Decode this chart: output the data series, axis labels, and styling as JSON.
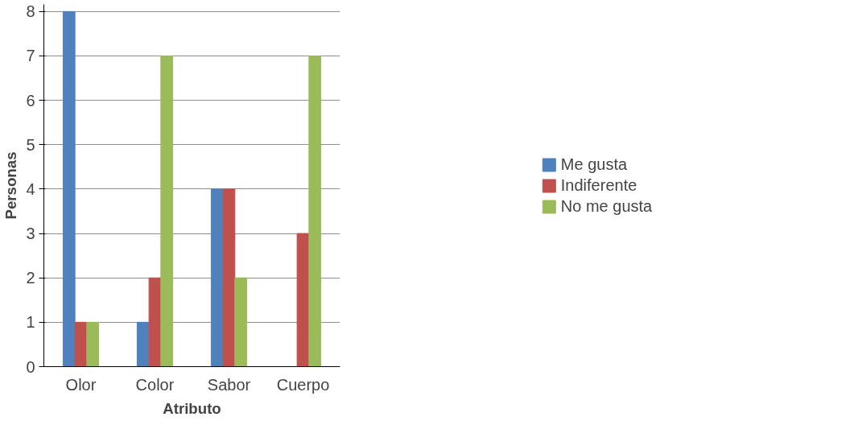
{
  "chart_data": {
    "type": "bar",
    "xlabel": "Atributo",
    "ylabel": "Personas",
    "categories": [
      "Olor",
      "Color",
      "Sabor",
      "Cuerpo"
    ],
    "series": [
      {
        "name": "Me gusta",
        "color": "#4f81bd",
        "values": [
          8,
          1,
          4,
          0
        ]
      },
      {
        "name": "Indiferente",
        "color": "#c0504d",
        "values": [
          1,
          2,
          4,
          3
        ]
      },
      {
        "name": "No me gusta",
        "color": "#9bbb59",
        "values": [
          1,
          7,
          2,
          7
        ]
      }
    ],
    "ylim": [
      0,
      8
    ],
    "yticks": [
      0,
      1,
      2,
      3,
      4,
      5,
      6,
      7,
      8
    ],
    "grid": "y",
    "legend": "right"
  }
}
